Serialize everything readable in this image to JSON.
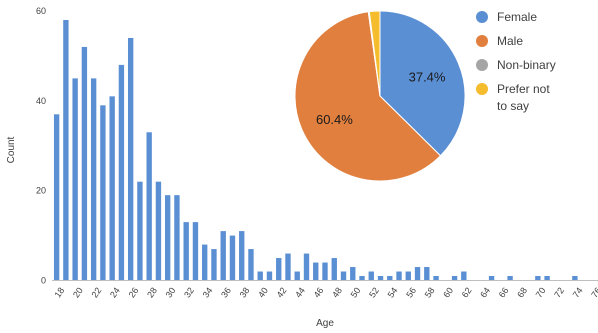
{
  "chart_data": [
    {
      "type": "bar",
      "xlabel": "Age",
      "ylabel": "Count",
      "ylim": [
        0,
        60
      ],
      "yticks": [
        0,
        20,
        40,
        60
      ],
      "grid": false,
      "color": "#5b8fd4",
      "x": [
        18,
        19,
        20,
        21,
        22,
        23,
        24,
        25,
        26,
        27,
        28,
        29,
        30,
        31,
        32,
        33,
        34,
        35,
        36,
        37,
        38,
        39,
        40,
        41,
        42,
        43,
        44,
        45,
        46,
        47,
        48,
        49,
        50,
        51,
        52,
        53,
        54,
        55,
        56,
        57,
        58,
        59,
        60,
        61,
        62,
        63,
        64,
        65,
        66,
        67,
        68,
        69,
        70,
        71,
        72,
        73,
        74,
        75,
        76
      ],
      "values": [
        37,
        58,
        45,
        52,
        45,
        39,
        41,
        48,
        54,
        22,
        33,
        22,
        19,
        19,
        13,
        13,
        8,
        7,
        11,
        10,
        11,
        7,
        2,
        2,
        5,
        6,
        2,
        6,
        4,
        4,
        5,
        2,
        3,
        1,
        2,
        1,
        1,
        2,
        2,
        3,
        3,
        1,
        0,
        1,
        2,
        0,
        0,
        1,
        0,
        1,
        0,
        0,
        1,
        1,
        0,
        0,
        1,
        0,
        0
      ],
      "xtick_labels": [
        "18",
        "20",
        "22",
        "24",
        "26",
        "28",
        "30",
        "32",
        "34",
        "36",
        "38",
        "40",
        "42",
        "44",
        "46",
        "48",
        "50",
        "52",
        "54",
        "56",
        "58",
        "60",
        "62",
        "64",
        "66",
        "68",
        "70",
        "72",
        "74",
        "76"
      ]
    },
    {
      "type": "pie",
      "slices": [
        {
          "name": "Female",
          "value": 37.4,
          "label": "37.4%",
          "color": "#5b8fd4"
        },
        {
          "name": "Male",
          "value": 60.4,
          "label": "60.4%",
          "color": "#e07f3e"
        },
        {
          "name": "Non-binary",
          "value": 0.2,
          "label": "",
          "color": "#a5a5a5"
        },
        {
          "name": "Prefer not to say",
          "value": 2.0,
          "label": "",
          "color": "#f5bd2d"
        }
      ],
      "legend": [
        {
          "lines": [
            "Female"
          ],
          "color": "#5b8fd4"
        },
        {
          "lines": [
            "Male"
          ],
          "color": "#e07f3e"
        },
        {
          "lines": [
            "Non-binary"
          ],
          "color": "#a5a5a5"
        },
        {
          "lines": [
            "Prefer not",
            "to say"
          ],
          "color": "#f5bd2d"
        }
      ],
      "legend_position": "right"
    }
  ]
}
